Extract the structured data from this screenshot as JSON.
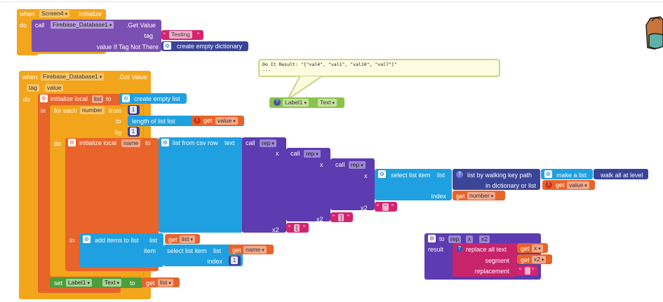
{
  "colors": {
    "event": "#f3a51c",
    "firebase": "#7c4fb3",
    "variable": "#e8642a",
    "text": "#d4246f",
    "list": "#1fa0e0",
    "procedure": "#5d3bb0",
    "component_setter": "#4c9e3a",
    "label_getter": "#8bc34a",
    "math": "#3b3f99"
  },
  "block1": {
    "when": "when",
    "component": "Screen4",
    "event": ".Initialize",
    "do": "do",
    "call": "call",
    "firebase_component": "Firebase_Database1",
    "method": ".Get Value",
    "tag_label": "tag",
    "tag_value": "Testing",
    "value_if_label": "value If Tag Not There",
    "create_dict": "create empty dictionary"
  },
  "block2": {
    "when": "when",
    "component": "Firebase_Database1",
    "event": ".Got Value",
    "param_tag": "tag",
    "param_value": "value",
    "do": "do",
    "init_local": "initialize local",
    "local_list_name": "list",
    "to": "to",
    "create_empty_list": "create empty list",
    "in": "in",
    "for_each": "for each",
    "number_var": "number",
    "from": "from",
    "from_value": "1",
    "to2": "to",
    "length_of_list": "length of list list",
    "get": "get",
    "value_var": "value",
    "by": "by",
    "by_value": "1",
    "do2": "do",
    "init_local2": "initialize local",
    "name_var": "name",
    "to3": "to",
    "list_from_csv": "list from csv row",
    "text_label": "text",
    "call": "call",
    "rep": "rep",
    "x": "x",
    "select_list_item": "select list item",
    "list_label": "list",
    "list_by_walking": "list by walking key path",
    "make_a_list": "make a list",
    "walk_all": "walk all at level",
    "in_dictionary": "in dictionary or list",
    "index_label": "index",
    "x2": "x2",
    "str_quote": "\"",
    "str_bracket_close": "]",
    "str_bracket_open": "[",
    "in2": "in",
    "add_items": "add items to list",
    "item_label": "item",
    "index_value": "1",
    "set": "set",
    "label_component": "Label1",
    "text_prop": "Text",
    "to4": "to"
  },
  "do_it_result": {
    "line1": "Do It Result: \"[\"val4\", \"val1\", \"val10\", \"val7\"]\"",
    "line2": "---"
  },
  "label_getter": {
    "component": "Label1",
    "property": "Text"
  },
  "procedure": {
    "to": "to",
    "name": "rep",
    "arg1": "x",
    "arg2": "x2",
    "result": "result",
    "replace_all": "replace all text",
    "segment": "segment",
    "replacement": "replacement",
    "get": "get"
  }
}
